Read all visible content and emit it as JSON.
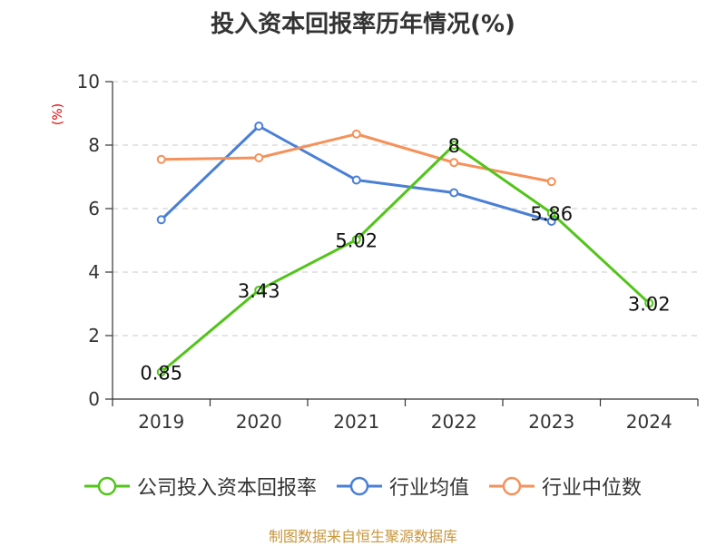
{
  "title": "投入资本回报率历年情况(%)",
  "source": "制图数据来自恒生聚源数据库",
  "chart_data": {
    "type": "line",
    "title": "投入资本回报率历年情况(%)",
    "ylabel": "(%)",
    "xlabel": "",
    "categories": [
      "2019",
      "2020",
      "2021",
      "2022",
      "2023",
      "2024"
    ],
    "ylim": [
      0,
      10
    ],
    "yticks": [
      0,
      2,
      4,
      6,
      8,
      10
    ],
    "grid": true,
    "legend_position": "bottom",
    "series": [
      {
        "name": "公司投入资本回报率",
        "color": "#52c41a",
        "values": [
          0.85,
          3.43,
          5.02,
          8,
          5.86,
          3.02
        ],
        "labels": [
          "0.85",
          "3.43",
          "5.02",
          "8",
          "5.86",
          "3.02"
        ]
      },
      {
        "name": "行业均值",
        "color": "#4a7fd6",
        "values": [
          5.65,
          8.6,
          6.9,
          6.5,
          5.6,
          null
        ]
      },
      {
        "name": "行业中位数",
        "color": "#f5915a",
        "values": [
          7.55,
          7.6,
          8.35,
          7.45,
          6.85,
          null
        ]
      }
    ]
  }
}
